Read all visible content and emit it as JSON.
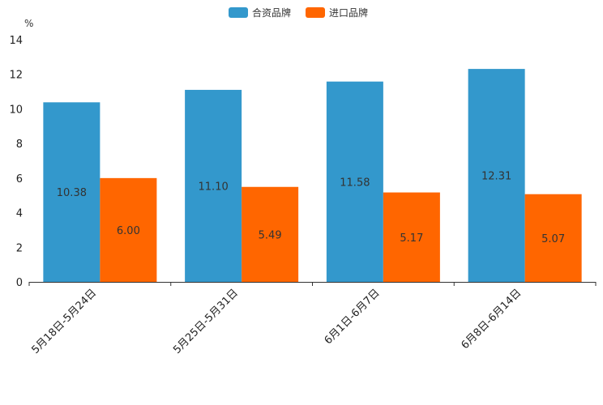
{
  "chart_data": {
    "type": "bar",
    "title": "",
    "ylabel": "%",
    "xlabel": "",
    "ylim": [
      0,
      14
    ],
    "yticks": [
      0,
      2,
      4,
      6,
      8,
      10,
      12,
      14
    ],
    "grid": false,
    "legend_position": "top-center",
    "categories": [
      "5月18日-5月24日",
      "5月25日-5月31日",
      "6月1日-6月7日",
      "6月8日-6月14日"
    ],
    "series": [
      {
        "name": "合资品牌",
        "color": "#3398CC",
        "values": [
          10.38,
          11.1,
          11.58,
          12.31
        ]
      },
      {
        "name": "进口品牌",
        "color": "#FF6600",
        "values": [
          6.0,
          5.49,
          5.17,
          5.07
        ]
      }
    ]
  }
}
